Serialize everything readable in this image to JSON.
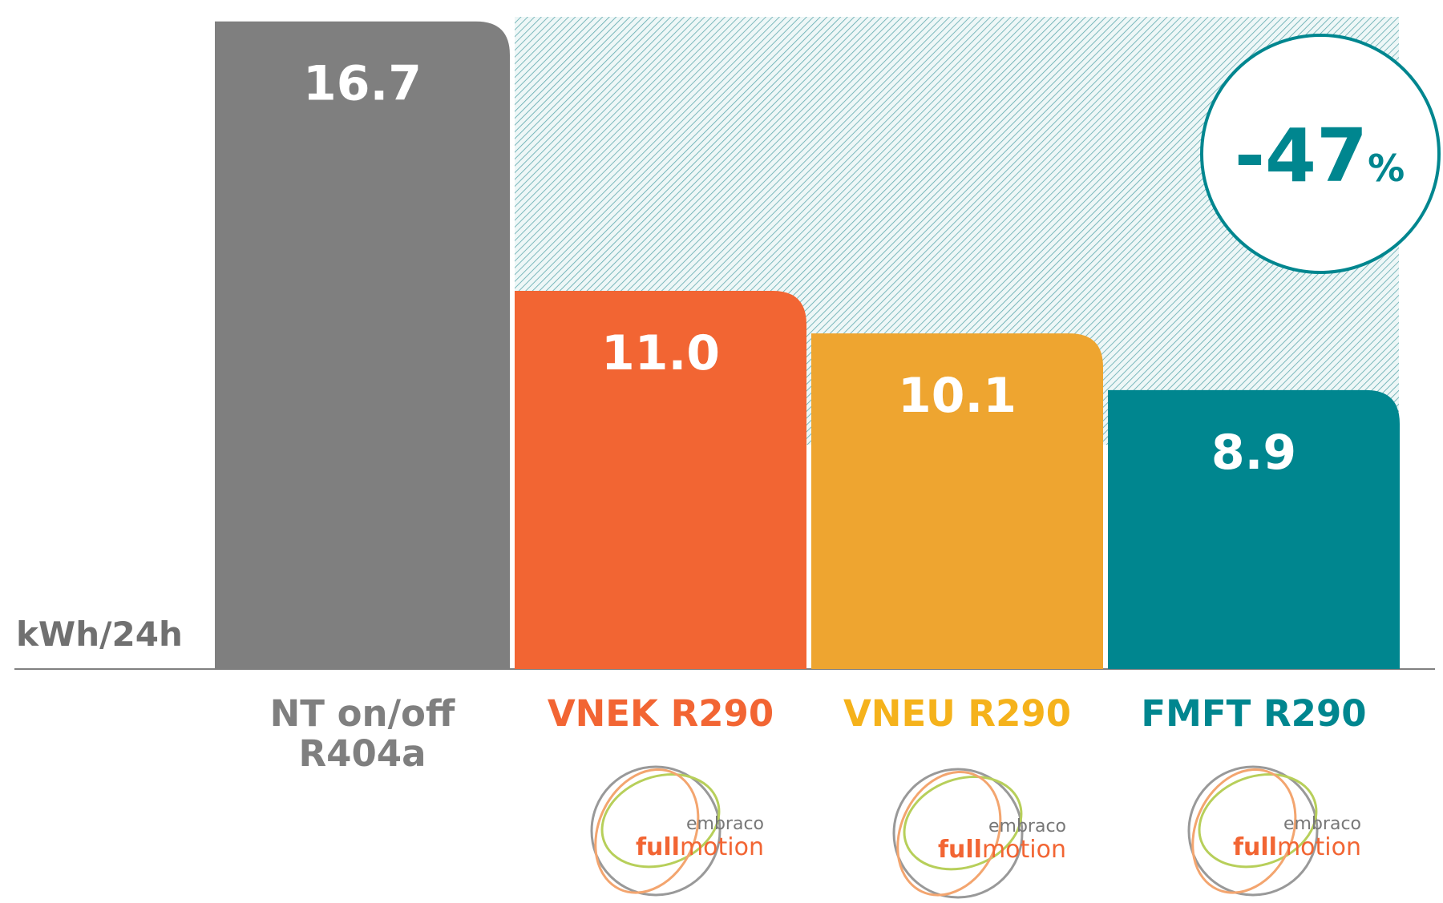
{
  "chart_data": {
    "type": "bar",
    "y_label": "kWh/24h",
    "categories": [
      "NT on/off R404a",
      "VNEK R290",
      "VNEU R290",
      "FMFT R290"
    ],
    "values": [
      16.7,
      11.0,
      10.1,
      8.9
    ],
    "value_labels": [
      "16.7",
      "11.0",
      "10.1",
      "8.9"
    ],
    "colors": [
      "#7f7f7f",
      "#f26533",
      "#eea530",
      "#00868f"
    ],
    "label_colors": [
      "#7f7f7f",
      "#f26533",
      "#f5b21b",
      "#00868f"
    ],
    "ylim": [
      3,
      17
    ],
    "annotation": {
      "number": "-47",
      "unit": "%"
    },
    "logo": {
      "brand": "embraco",
      "name_a": "full",
      "name_b": "motion"
    }
  }
}
